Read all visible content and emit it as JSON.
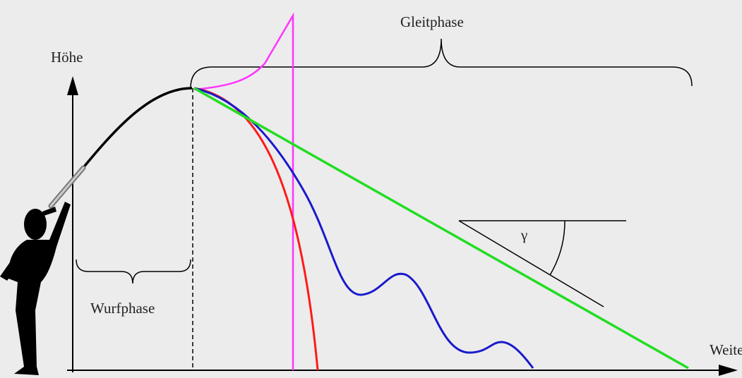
{
  "axes": {
    "y_label": "Höhe",
    "x_label": "Weite"
  },
  "phases": {
    "glide": "Gleitphase",
    "throw": "Wurfphase"
  },
  "angle_label": "γ"
}
